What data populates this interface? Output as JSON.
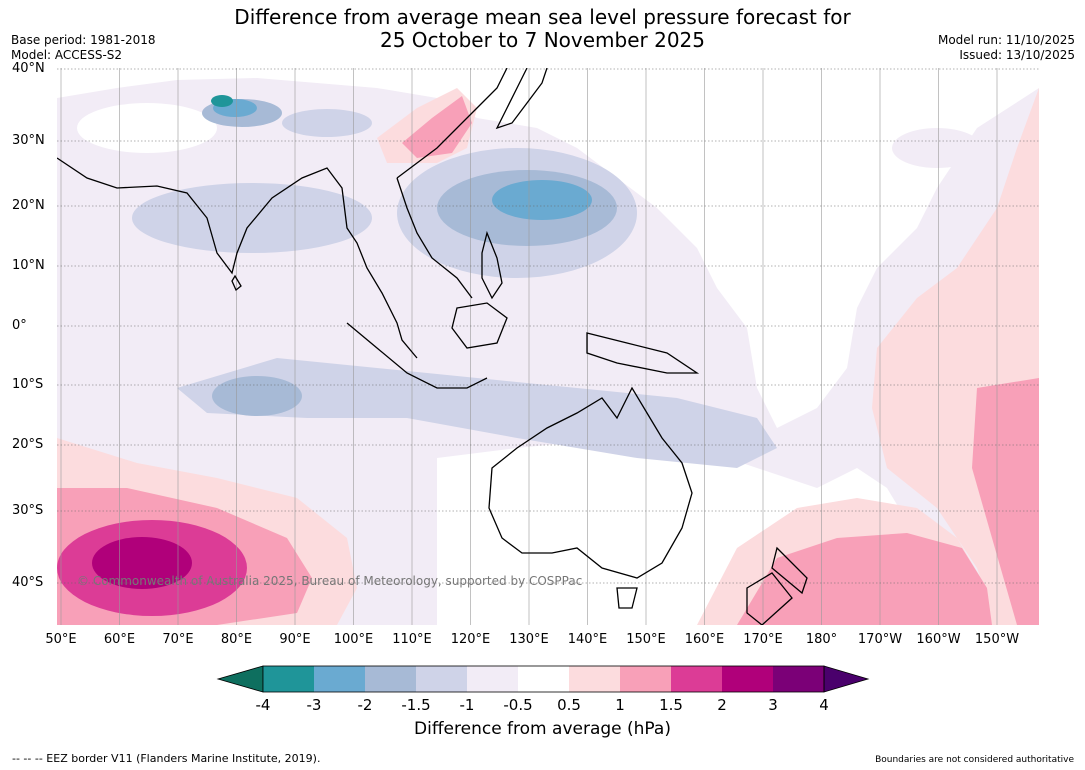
{
  "title": {
    "line1": "Difference from average mean sea level pressure forecast for",
    "line2": "25 October to 7 November 2025"
  },
  "meta_left": {
    "base_period": "Base period: 1981-2018",
    "model": "Model: ACCESS-S2"
  },
  "meta_right": {
    "model_run": "Model run: 11/10/2025",
    "issued": "Issued: 13/10/2025"
  },
  "lat_labels": [
    "40°N",
    "30°N",
    "20°N",
    "10°N",
    "0°",
    "10°S",
    "20°S",
    "30°S",
    "40°S"
  ],
  "lon_labels": [
    "50°E",
    "60°E",
    "70°E",
    "80°E",
    "90°E",
    "100°E",
    "110°E",
    "120°E",
    "130°E",
    "140°E",
    "150°E",
    "160°E",
    "170°E",
    "180°",
    "170°W",
    "160°W",
    "150°W"
  ],
  "watermark": "© Commonwealth of Australia 2025, Bureau of Meteorology, supported by COSPPac",
  "colorbar": {
    "ticks": [
      "-4",
      "-3",
      "-2",
      "-1.5",
      "-1",
      "-0.5",
      "0.5",
      "1",
      "1.5",
      "2",
      "3",
      "4"
    ],
    "colors": [
      "#0e6f5f",
      "#1f9599",
      "#6aaad1",
      "#a7bad6",
      "#cfd3e8",
      "#f2ecf6",
      "#ffffff",
      "#fcdcde",
      "#f8a0b8",
      "#dc3c96",
      "#b0007a",
      "#7b0077",
      "#4a006c"
    ],
    "label": "Difference from average (hPa)"
  },
  "footer": {
    "eez": "--  --  -- EEZ border V11 (Flanders Marine Institute, 2019).",
    "boundaries": "Boundaries are not considered authoritative"
  }
}
